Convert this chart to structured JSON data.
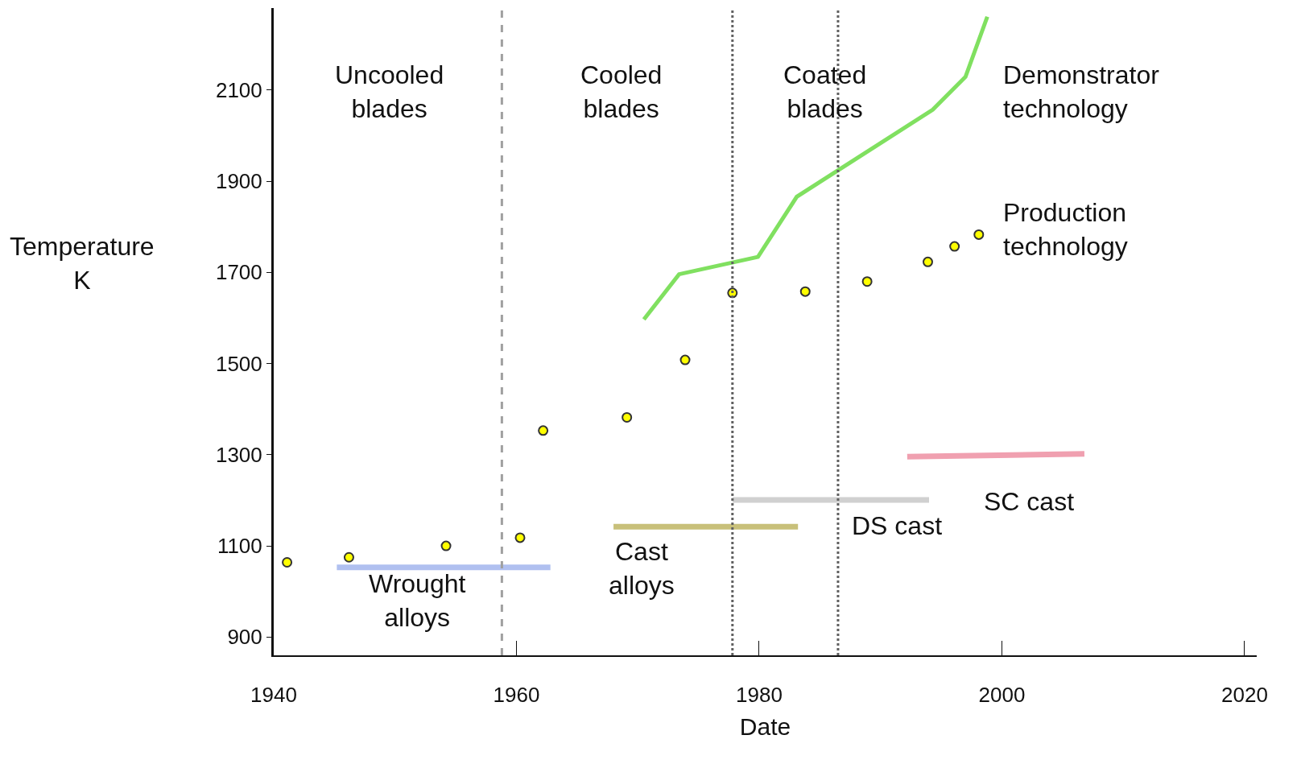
{
  "chart_data": {
    "type": "scatter",
    "xlabel": "Date",
    "ylabel": "Temperature\nK",
    "xlim": [
      1940,
      2021
    ],
    "xticks": [
      1940,
      1960,
      1980,
      2000,
      2020
    ],
    "ylim": [
      860,
      2280
    ],
    "yticks": [
      900,
      1100,
      1300,
      1500,
      1700,
      1900,
      2100
    ],
    "grid": false,
    "legend": false,
    "marker": "none",
    "annotations": [
      "Uncooled\nblades",
      "Cooled\nblades",
      "Coated\nblades"
    ],
    "ref_lines": [
      {
        "axis": "x",
        "value": 1958.8,
        "line_style": "dashed",
        "color": "#a0a0a0"
      },
      {
        "axis": "x",
        "value": 1977.8,
        "line_style": "dotted",
        "color": "#606060"
      },
      {
        "axis": "x",
        "value": 1986.5,
        "line_style": "dotted",
        "color": "#606060"
      }
    ],
    "series": [
      {
        "name": "Production\ntechnology",
        "marker": "circle",
        "color": "#ffff00",
        "x": [
          1941.1,
          1946.2,
          1954.2,
          1960.3,
          1962.2,
          1969.1,
          1973.9,
          1977.8,
          1983.8,
          1988.9,
          1993.9,
          1996.1,
          1998.1
        ],
        "values": [
          1064,
          1075,
          1100,
          1118,
          1353,
          1382,
          1508,
          1655,
          1658,
          1680,
          1723,
          1757,
          1783
        ]
      },
      {
        "name": "Demonstrator\ntechnology",
        "type": "line",
        "color": "#80e060",
        "x": [
          1970.5,
          1973.4,
          1979.9,
          1983.1,
          1994.3,
          1997,
          1998.8
        ],
        "values": [
          1597,
          1696,
          1734,
          1866,
          2057,
          2129,
          2261
        ]
      },
      {
        "name": "Wrought\nalloys",
        "type": "line",
        "color": "#b0c0f0",
        "x": [
          1945.2,
          1962.8
        ],
        "values": [
          1053,
          1053
        ]
      },
      {
        "name": "Cast\nalloys",
        "type": "line",
        "color": "#c8c07a",
        "x": [
          1968,
          1983.2
        ],
        "values": [
          1142,
          1142
        ]
      },
      {
        "name": "DS cast",
        "type": "line",
        "color": "#d0d0d0",
        "x": [
          1977.8,
          1994
        ],
        "values": [
          1201,
          1201
        ]
      },
      {
        "name": "SC cast",
        "type": "line",
        "color": "#f0a0b0",
        "x": [
          1992.2,
          2006.8
        ],
        "values": [
          1296,
          1302
        ]
      }
    ]
  }
}
